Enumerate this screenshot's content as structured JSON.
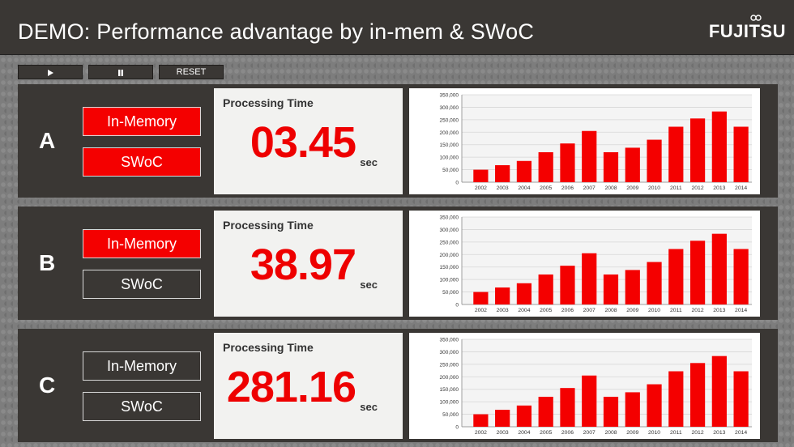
{
  "header": {
    "title": "DEMO: Performance advantage by in-mem & SWoC",
    "logo": "FUJITSU"
  },
  "controls": {
    "play_icon": "play-icon",
    "pause_icon": "pause-icon",
    "reset_label": "RESET"
  },
  "panels": [
    {
      "letter": "A",
      "in_memory_label": "In-Memory",
      "in_memory_on": true,
      "swoc_label": "SWoC",
      "swoc_on": true,
      "time_label": "Processing Time",
      "time_value": "03.45",
      "time_unit": "sec"
    },
    {
      "letter": "B",
      "in_memory_label": "In-Memory",
      "in_memory_on": true,
      "swoc_label": "SWoC",
      "swoc_on": false,
      "time_label": "Processing Time",
      "time_value": "38.97",
      "time_unit": "sec"
    },
    {
      "letter": "C",
      "in_memory_label": "In-Memory",
      "in_memory_on": false,
      "swoc_label": "SWoC",
      "swoc_on": false,
      "time_label": "Processing Time",
      "time_value": "281.16",
      "time_unit": "sec"
    }
  ],
  "colors": {
    "accent": "#f40000",
    "panel_bg": "#3a3734",
    "bar": "#f40000"
  },
  "chart_data": [
    {
      "type": "bar",
      "categories": [
        "2002",
        "2003",
        "2004",
        "2005",
        "2006",
        "2007",
        "2008",
        "2009",
        "2010",
        "2011",
        "2012",
        "2013",
        "2014"
      ],
      "values": [
        50000,
        68000,
        85000,
        120000,
        155000,
        205000,
        120000,
        138000,
        170000,
        222000,
        255000,
        283000,
        222000
      ],
      "ylim": [
        0,
        350000
      ],
      "yticks": [
        "0",
        "50,000",
        "100,000",
        "150,000",
        "200,000",
        "250,000",
        "300,000",
        "350,000"
      ],
      "grid": true
    },
    {
      "type": "bar",
      "categories": [
        "2002",
        "2003",
        "2004",
        "2005",
        "2006",
        "2007",
        "2008",
        "2009",
        "2010",
        "2011",
        "2012",
        "2013",
        "2014"
      ],
      "values": [
        50000,
        68000,
        85000,
        120000,
        155000,
        205000,
        120000,
        138000,
        170000,
        222000,
        255000,
        283000,
        222000
      ],
      "ylim": [
        0,
        350000
      ],
      "yticks": [
        "0",
        "50,000",
        "100,000",
        "150,000",
        "200,000",
        "250,000",
        "300,000",
        "350,000"
      ],
      "grid": true
    },
    {
      "type": "bar",
      "categories": [
        "2002",
        "2003",
        "2004",
        "2005",
        "2006",
        "2007",
        "2008",
        "2009",
        "2010",
        "2011",
        "2012",
        "2013",
        "2014"
      ],
      "values": [
        50000,
        68000,
        85000,
        120000,
        155000,
        205000,
        120000,
        138000,
        170000,
        222000,
        255000,
        283000,
        222000
      ],
      "ylim": [
        0,
        350000
      ],
      "yticks": [
        "0",
        "50,000",
        "100,000",
        "150,000",
        "200,000",
        "250,000",
        "300,000",
        "350,000"
      ],
      "grid": true
    }
  ]
}
